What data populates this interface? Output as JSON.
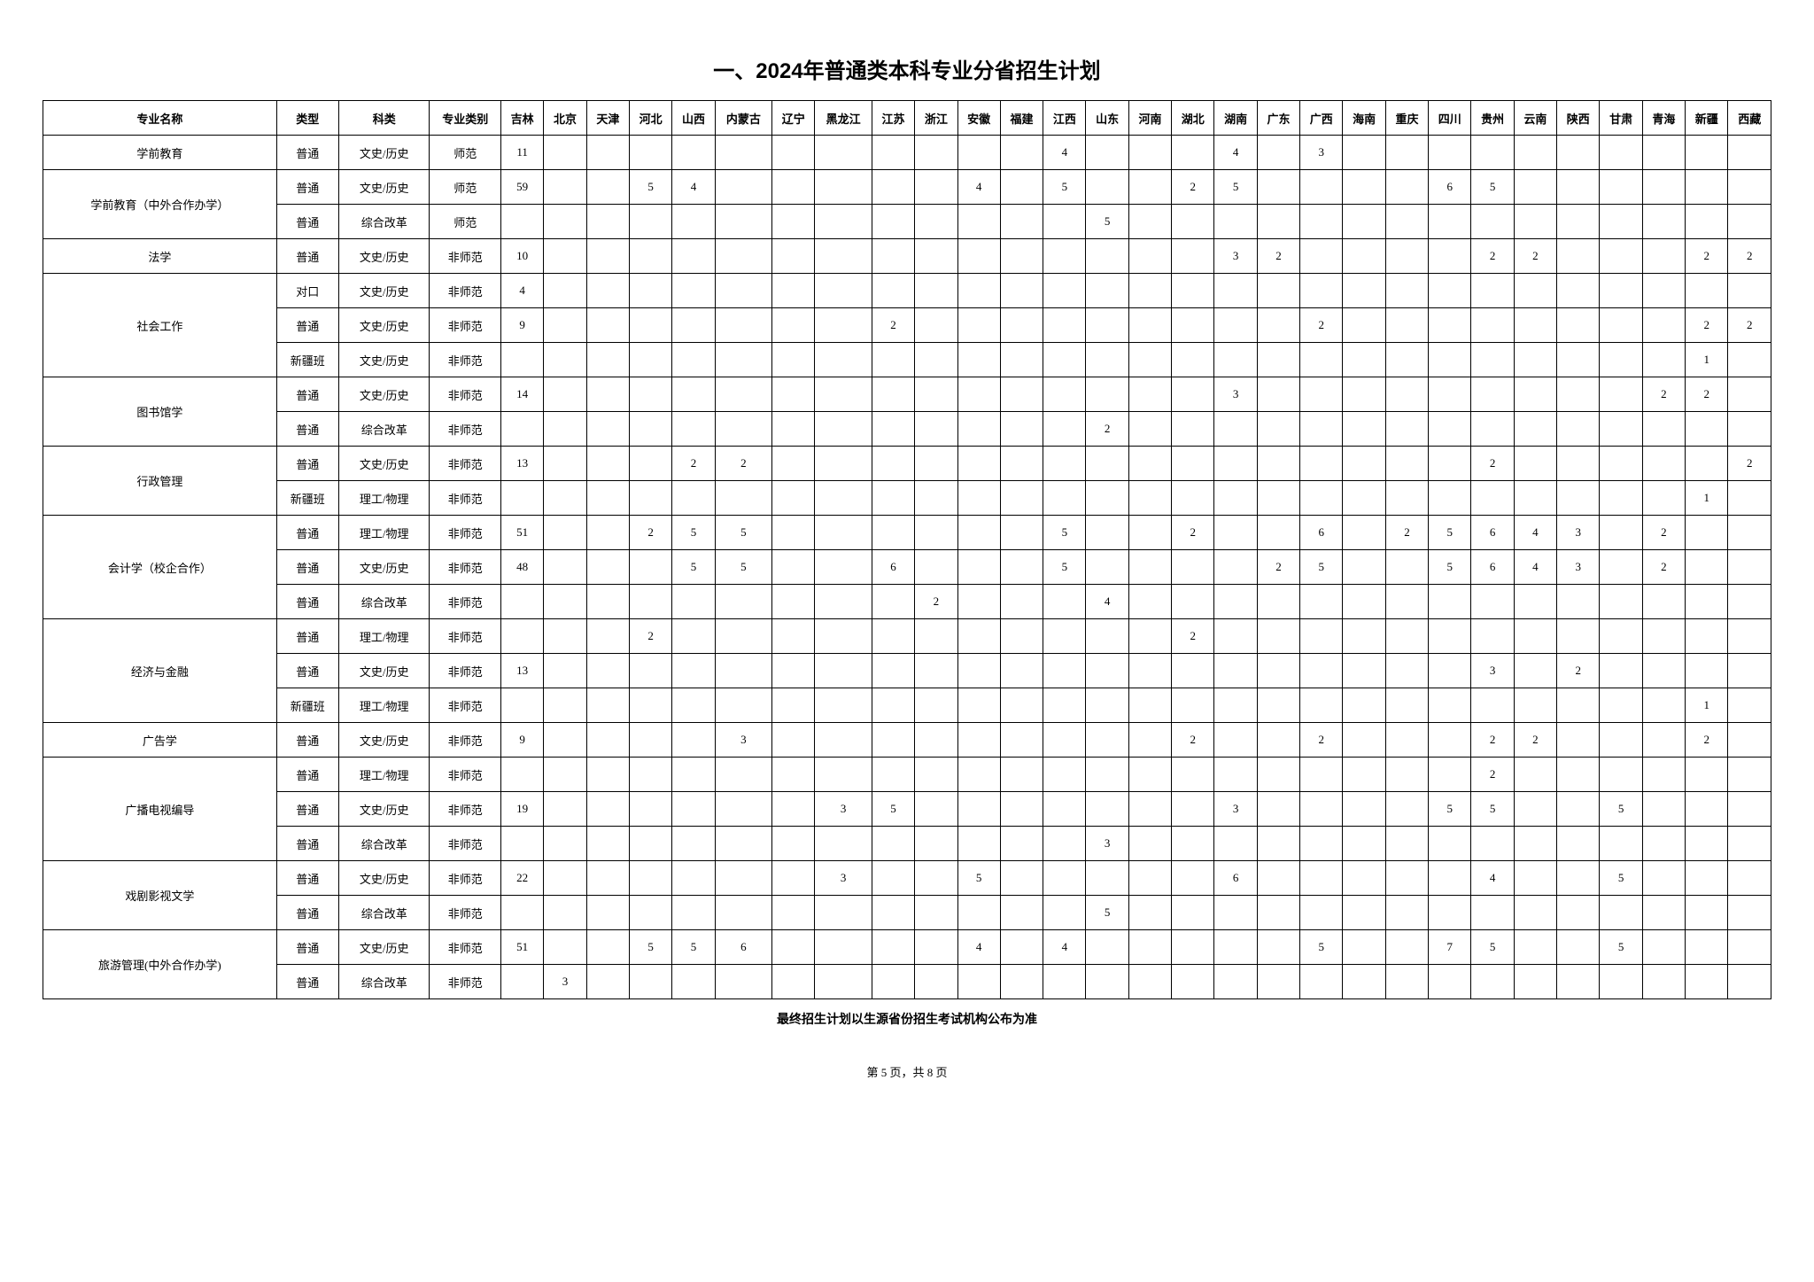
{
  "title": "一、2024年普通类本科专业分省招生计划",
  "footer_note": "最终招生计划以生源省份招生考试机构公布为准",
  "page_label": "第 5 页，共 8 页",
  "headers": {
    "major": "专业名称",
    "type": "类型",
    "subject": "科类",
    "category": "专业类别",
    "provinces": [
      "吉林",
      "北京",
      "天津",
      "河北",
      "山西",
      "内蒙古",
      "辽宁",
      "黑龙江",
      "江苏",
      "浙江",
      "安徽",
      "福建",
      "江西",
      "山东",
      "河南",
      "湖北",
      "湖南",
      "广东",
      "广西",
      "海南",
      "重庆",
      "四川",
      "贵州",
      "云南",
      "陕西",
      "甘肃",
      "青海",
      "新疆",
      "西藏"
    ]
  },
  "majors": [
    {
      "name": "学前教育",
      "rows": [
        {
          "type": "普通",
          "subject": "文史/历史",
          "category": "师范",
          "vals": [
            "11",
            "",
            "",
            "",
            "",
            "",
            "",
            "",
            "",
            "",
            "",
            "",
            "4",
            "",
            "",
            "",
            "4",
            "",
            "3",
            "",
            "",
            "",
            "",
            "",
            "",
            "",
            "",
            "",
            ""
          ]
        }
      ]
    },
    {
      "name": "学前教育（中外合作办学）",
      "rows": [
        {
          "type": "普通",
          "subject": "文史/历史",
          "category": "师范",
          "vals": [
            "59",
            "",
            "",
            "5",
            "4",
            "",
            "",
            "",
            "",
            "",
            "4",
            "",
            "5",
            "",
            "",
            "2",
            "5",
            "",
            "",
            "",
            "",
            "6",
            "5",
            "",
            "",
            "",
            "",
            "",
            ""
          ]
        },
        {
          "type": "普通",
          "subject": "综合改革",
          "category": "师范",
          "vals": [
            "",
            "",
            "",
            "",
            "",
            "",
            "",
            "",
            "",
            "",
            "",
            "",
            "",
            "5",
            "",
            "",
            "",
            "",
            "",
            "",
            "",
            "",
            "",
            "",
            "",
            "",
            "",
            "",
            ""
          ]
        }
      ]
    },
    {
      "name": "法学",
      "rows": [
        {
          "type": "普通",
          "subject": "文史/历史",
          "category": "非师范",
          "vals": [
            "10",
            "",
            "",
            "",
            "",
            "",
            "",
            "",
            "",
            "",
            "",
            "",
            "",
            "",
            "",
            "",
            "3",
            "2",
            "",
            "",
            "",
            "",
            "2",
            "2",
            "",
            "",
            "",
            "2",
            "2"
          ]
        }
      ]
    },
    {
      "name": "社会工作",
      "rows": [
        {
          "type": "对口",
          "subject": "文史/历史",
          "category": "非师范",
          "vals": [
            "4",
            "",
            "",
            "",
            "",
            "",
            "",
            "",
            "",
            "",
            "",
            "",
            "",
            "",
            "",
            "",
            "",
            "",
            "",
            "",
            "",
            "",
            "",
            "",
            "",
            "",
            "",
            "",
            ""
          ]
        },
        {
          "type": "普通",
          "subject": "文史/历史",
          "category": "非师范",
          "vals": [
            "9",
            "",
            "",
            "",
            "",
            "",
            "",
            "",
            "2",
            "",
            "",
            "",
            "",
            "",
            "",
            "",
            "",
            "",
            "2",
            "",
            "",
            "",
            "",
            "",
            "",
            "",
            "",
            "2",
            "2"
          ]
        },
        {
          "type": "新疆班",
          "subject": "文史/历史",
          "category": "非师范",
          "vals": [
            "",
            "",
            "",
            "",
            "",
            "",
            "",
            "",
            "",
            "",
            "",
            "",
            "",
            "",
            "",
            "",
            "",
            "",
            "",
            "",
            "",
            "",
            "",
            "",
            "",
            "",
            "",
            "1",
            ""
          ]
        }
      ]
    },
    {
      "name": "图书馆学",
      "rows": [
        {
          "type": "普通",
          "subject": "文史/历史",
          "category": "非师范",
          "vals": [
            "14",
            "",
            "",
            "",
            "",
            "",
            "",
            "",
            "",
            "",
            "",
            "",
            "",
            "",
            "",
            "",
            "3",
            "",
            "",
            "",
            "",
            "",
            "",
            "",
            "",
            "",
            "2",
            "2",
            ""
          ]
        },
        {
          "type": "普通",
          "subject": "综合改革",
          "category": "非师范",
          "vals": [
            "",
            "",
            "",
            "",
            "",
            "",
            "",
            "",
            "",
            "",
            "",
            "",
            "",
            "2",
            "",
            "",
            "",
            "",
            "",
            "",
            "",
            "",
            "",
            "",
            "",
            "",
            "",
            "",
            ""
          ]
        }
      ]
    },
    {
      "name": "行政管理",
      "rows": [
        {
          "type": "普通",
          "subject": "文史/历史",
          "category": "非师范",
          "vals": [
            "13",
            "",
            "",
            "",
            "2",
            "2",
            "",
            "",
            "",
            "",
            "",
            "",
            "",
            "",
            "",
            "",
            "",
            "",
            "",
            "",
            "",
            "",
            "2",
            "",
            "",
            "",
            "",
            "",
            "2"
          ]
        },
        {
          "type": "新疆班",
          "subject": "理工/物理",
          "category": "非师范",
          "vals": [
            "",
            "",
            "",
            "",
            "",
            "",
            "",
            "",
            "",
            "",
            "",
            "",
            "",
            "",
            "",
            "",
            "",
            "",
            "",
            "",
            "",
            "",
            "",
            "",
            "",
            "",
            "",
            "1",
            ""
          ]
        }
      ]
    },
    {
      "name": "会计学（校企合作）",
      "rows": [
        {
          "type": "普通",
          "subject": "理工/物理",
          "category": "非师范",
          "vals": [
            "51",
            "",
            "",
            "2",
            "5",
            "5",
            "",
            "",
            "",
            "",
            "",
            "",
            "5",
            "",
            "",
            "2",
            "",
            "",
            "6",
            "",
            "2",
            "5",
            "6",
            "4",
            "3",
            "",
            "2",
            "",
            ""
          ]
        },
        {
          "type": "普通",
          "subject": "文史/历史",
          "category": "非师范",
          "vals": [
            "48",
            "",
            "",
            "",
            "5",
            "5",
            "",
            "",
            "6",
            "",
            "",
            "",
            "5",
            "",
            "",
            "",
            "",
            "2",
            "5",
            "",
            "",
            "5",
            "6",
            "4",
            "3",
            "",
            "2",
            "",
            ""
          ]
        },
        {
          "type": "普通",
          "subject": "综合改革",
          "category": "非师范",
          "vals": [
            "",
            "",
            "",
            "",
            "",
            "",
            "",
            "",
            "",
            "2",
            "",
            "",
            "",
            "4",
            "",
            "",
            "",
            "",
            "",
            "",
            "",
            "",
            "",
            "",
            "",
            "",
            "",
            "",
            ""
          ]
        }
      ]
    },
    {
      "name": "经济与金融",
      "rows": [
        {
          "type": "普通",
          "subject": "理工/物理",
          "category": "非师范",
          "vals": [
            "",
            "",
            "",
            "2",
            "",
            "",
            "",
            "",
            "",
            "",
            "",
            "",
            "",
            "",
            "",
            "2",
            "",
            "",
            "",
            "",
            "",
            "",
            "",
            "",
            "",
            "",
            "",
            "",
            ""
          ]
        },
        {
          "type": "普通",
          "subject": "文史/历史",
          "category": "非师范",
          "vals": [
            "13",
            "",
            "",
            "",
            "",
            "",
            "",
            "",
            "",
            "",
            "",
            "",
            "",
            "",
            "",
            "",
            "",
            "",
            "",
            "",
            "",
            "",
            "3",
            "",
            "2",
            "",
            "",
            "",
            ""
          ]
        },
        {
          "type": "新疆班",
          "subject": "理工/物理",
          "category": "非师范",
          "vals": [
            "",
            "",
            "",
            "",
            "",
            "",
            "",
            "",
            "",
            "",
            "",
            "",
            "",
            "",
            "",
            "",
            "",
            "",
            "",
            "",
            "",
            "",
            "",
            "",
            "",
            "",
            "",
            "1",
            ""
          ]
        }
      ]
    },
    {
      "name": "广告学",
      "rows": [
        {
          "type": "普通",
          "subject": "文史/历史",
          "category": "非师范",
          "vals": [
            "9",
            "",
            "",
            "",
            "",
            "3",
            "",
            "",
            "",
            "",
            "",
            "",
            "",
            "",
            "",
            "2",
            "",
            "",
            "2",
            "",
            "",
            "",
            "2",
            "2",
            "",
            "",
            "",
            "2",
            ""
          ]
        }
      ]
    },
    {
      "name": "广播电视编导",
      "rows": [
        {
          "type": "普通",
          "subject": "理工/物理",
          "category": "非师范",
          "vals": [
            "",
            "",
            "",
            "",
            "",
            "",
            "",
            "",
            "",
            "",
            "",
            "",
            "",
            "",
            "",
            "",
            "",
            "",
            "",
            "",
            "",
            "",
            "2",
            "",
            "",
            "",
            "",
            "",
            ""
          ]
        },
        {
          "type": "普通",
          "subject": "文史/历史",
          "category": "非师范",
          "vals": [
            "19",
            "",
            "",
            "",
            "",
            "",
            "",
            "3",
            "5",
            "",
            "",
            "",
            "",
            "",
            "",
            "",
            "3",
            "",
            "",
            "",
            "",
            "5",
            "5",
            "",
            "",
            "5",
            "",
            "",
            ""
          ]
        },
        {
          "type": "普通",
          "subject": "综合改革",
          "category": "非师范",
          "vals": [
            "",
            "",
            "",
            "",
            "",
            "",
            "",
            "",
            "",
            "",
            "",
            "",
            "",
            "3",
            "",
            "",
            "",
            "",
            "",
            "",
            "",
            "",
            "",
            "",
            "",
            "",
            "",
            "",
            ""
          ]
        }
      ]
    },
    {
      "name": "戏剧影视文学",
      "rows": [
        {
          "type": "普通",
          "subject": "文史/历史",
          "category": "非师范",
          "vals": [
            "22",
            "",
            "",
            "",
            "",
            "",
            "",
            "3",
            "",
            "",
            "5",
            "",
            "",
            "",
            "",
            "",
            "6",
            "",
            "",
            "",
            "",
            "",
            "4",
            "",
            "",
            "5",
            "",
            "",
            ""
          ]
        },
        {
          "type": "普通",
          "subject": "综合改革",
          "category": "非师范",
          "vals": [
            "",
            "",
            "",
            "",
            "",
            "",
            "",
            "",
            "",
            "",
            "",
            "",
            "",
            "5",
            "",
            "",
            "",
            "",
            "",
            "",
            "",
            "",
            "",
            "",
            "",
            "",
            "",
            "",
            ""
          ]
        }
      ]
    },
    {
      "name": "旅游管理(中外合作办学)",
      "rows": [
        {
          "type": "普通",
          "subject": "文史/历史",
          "category": "非师范",
          "vals": [
            "51",
            "",
            "",
            "5",
            "5",
            "6",
            "",
            "",
            "",
            "",
            "4",
            "",
            "4",
            "",
            "",
            "",
            "",
            "",
            "5",
            "",
            "",
            "7",
            "5",
            "",
            "",
            "5",
            "",
            "",
            ""
          ]
        },
        {
          "type": "普通",
          "subject": "综合改革",
          "category": "非师范",
          "vals": [
            "",
            "3",
            "",
            "",
            "",
            "",
            "",
            "",
            "",
            "",
            "",
            "",
            "",
            "",
            "",
            "",
            "",
            "",
            "",
            "",
            "",
            "",
            "",
            "",
            "",
            "",
            "",
            "",
            ""
          ]
        }
      ]
    }
  ]
}
